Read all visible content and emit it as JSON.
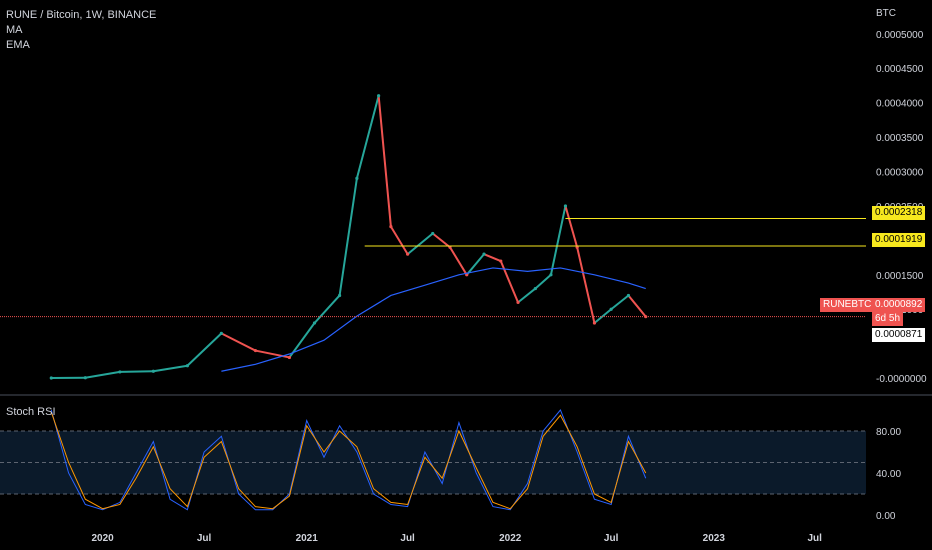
{
  "header": {
    "title": "RUNE / Bitcoin, 1W, BINANCE",
    "indicators": [
      "MA",
      "EMA"
    ],
    "currency": "BTC"
  },
  "colors": {
    "up": "#26a69a",
    "down": "#ef5350",
    "ma_line": "#2962ff",
    "level_line": "#f7e81e",
    "last_price_line": "#ef5350",
    "stoch_k": "#2962ff",
    "stoch_d": "#ff9800",
    "stoch_band": "#0b1a2a"
  },
  "tags": {
    "level_high": "0.0002318",
    "level_low": "0.0001919",
    "symbol": "RUNEBTC",
    "last_price": "0.0000892",
    "countdown": "6d 5h",
    "prev_close": "0.0000871"
  },
  "stoch": {
    "title": "Stoch RSI",
    "ticks": [
      "80.00",
      "40.00",
      "0.00"
    ]
  },
  "chart_data": {
    "type": "line",
    "title": "RUNE / Bitcoin, 1W, BINANCE",
    "y_ticks": [
      "0.0005000",
      "0.0004500",
      "0.0004000",
      "0.0003500",
      "0.0003000",
      "0.0002500",
      "0.0001500",
      "0.0001000",
      "-0.0000000"
    ],
    "ylim": [
      -1e-05,
      0.00052
    ],
    "x_ticks": [
      "2020",
      "Jul",
      "2021",
      "Jul",
      "2022",
      "Jul",
      "2023",
      "Jul"
    ],
    "series": [
      {
        "x": [
          "2019-10-01",
          "2019-12-01",
          "2020-02-01",
          "2020-04-01",
          "2020-06-01",
          "2020-08-01",
          "2020-10-01",
          "2020-12-01",
          "2021-01-15",
          "2021-03-01",
          "2021-04-01",
          "2021-05-10",
          "2021-06-01",
          "2021-07-01",
          "2021-08-15",
          "2021-09-15",
          "2021-10-15",
          "2021-11-15",
          "2021-12-15",
          "2022-01-15",
          "2022-02-15",
          "2022-03-15",
          "2022-04-10",
          "2022-05-01",
          "2022-06-01",
          "2022-07-01",
          "2022-08-01",
          "2022-09-01"
        ],
        "values": [
          2e-07,
          5e-07,
          9e-06,
          1e-05,
          1.8e-05,
          6.5e-05,
          4e-05,
          3e-05,
          8e-05,
          0.00012,
          0.00029,
          0.00041,
          0.00022,
          0.00018,
          0.00021,
          0.00019,
          0.00015,
          0.00018,
          0.00017,
          0.00011,
          0.00013,
          0.00015,
          0.00025,
          0.00019,
          8e-05,
          0.0001,
          0.00012,
          8.92e-05
        ]
      },
      {
        "x": [
          "2020-08-01",
          "2020-10-01",
          "2020-12-01",
          "2021-02-01",
          "2021-04-01",
          "2021-06-01",
          "2021-08-01",
          "2021-10-01",
          "2021-12-01",
          "2022-02-01",
          "2022-04-01",
          "2022-06-01",
          "2022-08-01",
          "2022-09-01"
        ],
        "values": [
          1e-05,
          2e-05,
          3.5e-05,
          5.5e-05,
          9e-05,
          0.00012,
          0.000135,
          0.00015,
          0.00016,
          0.000155,
          0.00016,
          0.00015,
          0.000138,
          0.00013
        ]
      }
    ],
    "stoch_rsi": {
      "ylim": [
        0,
        100
      ],
      "x": [
        "2019-10-01",
        "2019-11-01",
        "2019-12-01",
        "2020-01-01",
        "2020-02-01",
        "2020-03-01",
        "2020-04-01",
        "2020-05-01",
        "2020-06-01",
        "2020-07-01",
        "2020-08-01",
        "2020-09-01",
        "2020-10-01",
        "2020-11-01",
        "2020-12-01",
        "2021-01-01",
        "2021-02-01",
        "2021-03-01",
        "2021-04-01",
        "2021-05-01",
        "2021-06-01",
        "2021-07-01",
        "2021-08-01",
        "2021-09-01",
        "2021-10-01",
        "2021-11-01",
        "2021-12-01",
        "2022-01-01",
        "2022-02-01",
        "2022-03-01",
        "2022-04-01",
        "2022-05-01",
        "2022-06-01",
        "2022-07-01",
        "2022-08-01",
        "2022-09-01"
      ],
      "k": [
        100,
        40,
        10,
        5,
        12,
        40,
        70,
        15,
        5,
        60,
        75,
        20,
        5,
        5,
        20,
        90,
        55,
        85,
        60,
        20,
        10,
        8,
        60,
        30,
        88,
        40,
        8,
        5,
        30,
        80,
        100,
        60,
        15,
        10,
        75,
        35
      ],
      "d": [
        98,
        50,
        15,
        6,
        10,
        35,
        65,
        25,
        8,
        55,
        70,
        25,
        8,
        6,
        18,
        85,
        60,
        80,
        65,
        25,
        12,
        10,
        55,
        35,
        80,
        45,
        12,
        6,
        25,
        75,
        95,
        65,
        20,
        12,
        70,
        40
      ]
    }
  }
}
